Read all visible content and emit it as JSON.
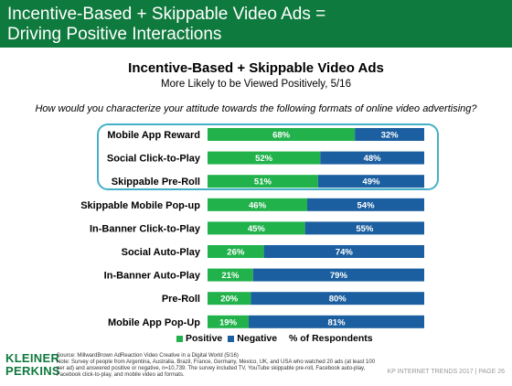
{
  "header": {
    "title_line1": "Incentive-Based + Skippable Video Ads =",
    "title_line2": "Driving Positive Interactions"
  },
  "question": "How would you characterize your attitude towards the following formats of online video advertising?",
  "legend": {
    "positive": "Positive",
    "negative": "Negative"
  },
  "source": {
    "line1": "Source: MillwardBrown AdReaction Video Creative in a Digital World (5/16)",
    "line2": "Note: Survey of people from Argentina, Australia, Brazil, France, Germany, Mexico, UK, and USA who watched 20 ads (at least 100 per ad) and answered positive or negative, n=10,739. The survey included TV, YouTube skippable pre-roll, Facebook auto-play, Facebook click-to-play, and mobile video ad formats."
  },
  "logo": {
    "line1": "KLEINER",
    "line2": "PERKINS"
  },
  "footer": "KP INTERNET TRENDS 2017  |  PAGE 26",
  "colors": {
    "positive": "#21b24b",
    "negative": "#1b5fa0",
    "header": "#0f7a3e",
    "highlight": "#44b0c8"
  },
  "chart_data": {
    "type": "bar",
    "orientation": "horizontal",
    "stacked": true,
    "title": "Incentive-Based + Skippable Video Ads",
    "subtitle": "More Likely to be Viewed Positively, 5/16",
    "xlabel": "% of Respondents",
    "xlim": [
      0,
      100
    ],
    "legend_position": "bottom",
    "categories": [
      "Mobile App Reward",
      "Social Click-to-Play",
      "Skippable Pre-Roll",
      "Skippable Mobile Pop-up",
      "In-Banner Click-to-Play",
      "Social Auto-Play",
      "In-Banner Auto-Play",
      "Pre-Roll",
      "Mobile App Pop-Up"
    ],
    "series": [
      {
        "name": "Positive",
        "values": [
          68,
          52,
          51,
          46,
          45,
          26,
          21,
          20,
          19
        ],
        "labels": [
          "68%",
          "52%",
          "51%",
          "46%",
          "45%",
          "26%",
          "21%",
          "20%",
          "19%"
        ]
      },
      {
        "name": "Negative",
        "values": [
          32,
          48,
          49,
          54,
          55,
          74,
          79,
          80,
          81
        ],
        "labels": [
          "32%",
          "48%",
          "49%",
          "54%",
          "55%",
          "74%",
          "79%",
          "80%",
          "81%"
        ]
      }
    ]
  }
}
